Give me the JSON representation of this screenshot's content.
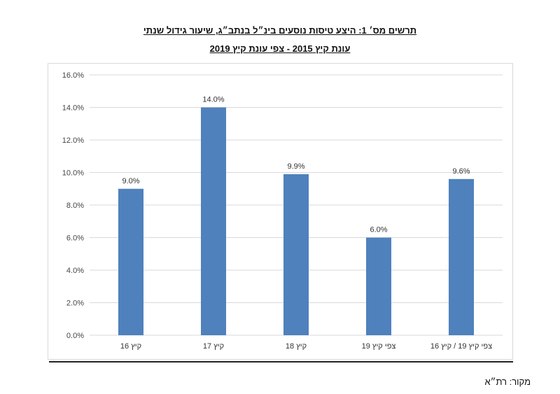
{
  "title_line1": "תרשים מס׳ 1: היצע טיסות נוסעים בינ״ל בנתב״ג, שיעור גידול שנתי",
  "title_line2": "עונת קיץ 2015 - צפי עונת קיץ 2019",
  "source": "מקור: רת״א",
  "chart_data": {
    "type": "bar",
    "title": "תרשים מס׳ 1: היצע טיסות נוסעים בינ״ל בנתב״ג, שיעור גידול שנתי",
    "subtitle": "עונת קיץ 2015 - צפי עונת קיץ 2019",
    "xlabel": "",
    "ylabel": "",
    "categories": [
      "קיץ 16",
      "קיץ 17",
      "קיץ 18",
      "צפי קיץ 19",
      "צפי קיץ 19 / קיץ 16"
    ],
    "values": [
      9.0,
      14.0,
      9.9,
      6.0,
      9.6
    ],
    "data_labels": [
      "9.0%",
      "14.0%",
      "9.9%",
      "6.0%",
      "9.6%"
    ],
    "ylim": [
      0,
      16
    ],
    "y_ticks": [
      "0.0%",
      "2.0%",
      "4.0%",
      "6.0%",
      "8.0%",
      "10.0%",
      "12.0%",
      "14.0%",
      "16.0%"
    ],
    "grid": true,
    "bar_color": "#4f81bd",
    "grid_color": "#d9d9d9"
  }
}
